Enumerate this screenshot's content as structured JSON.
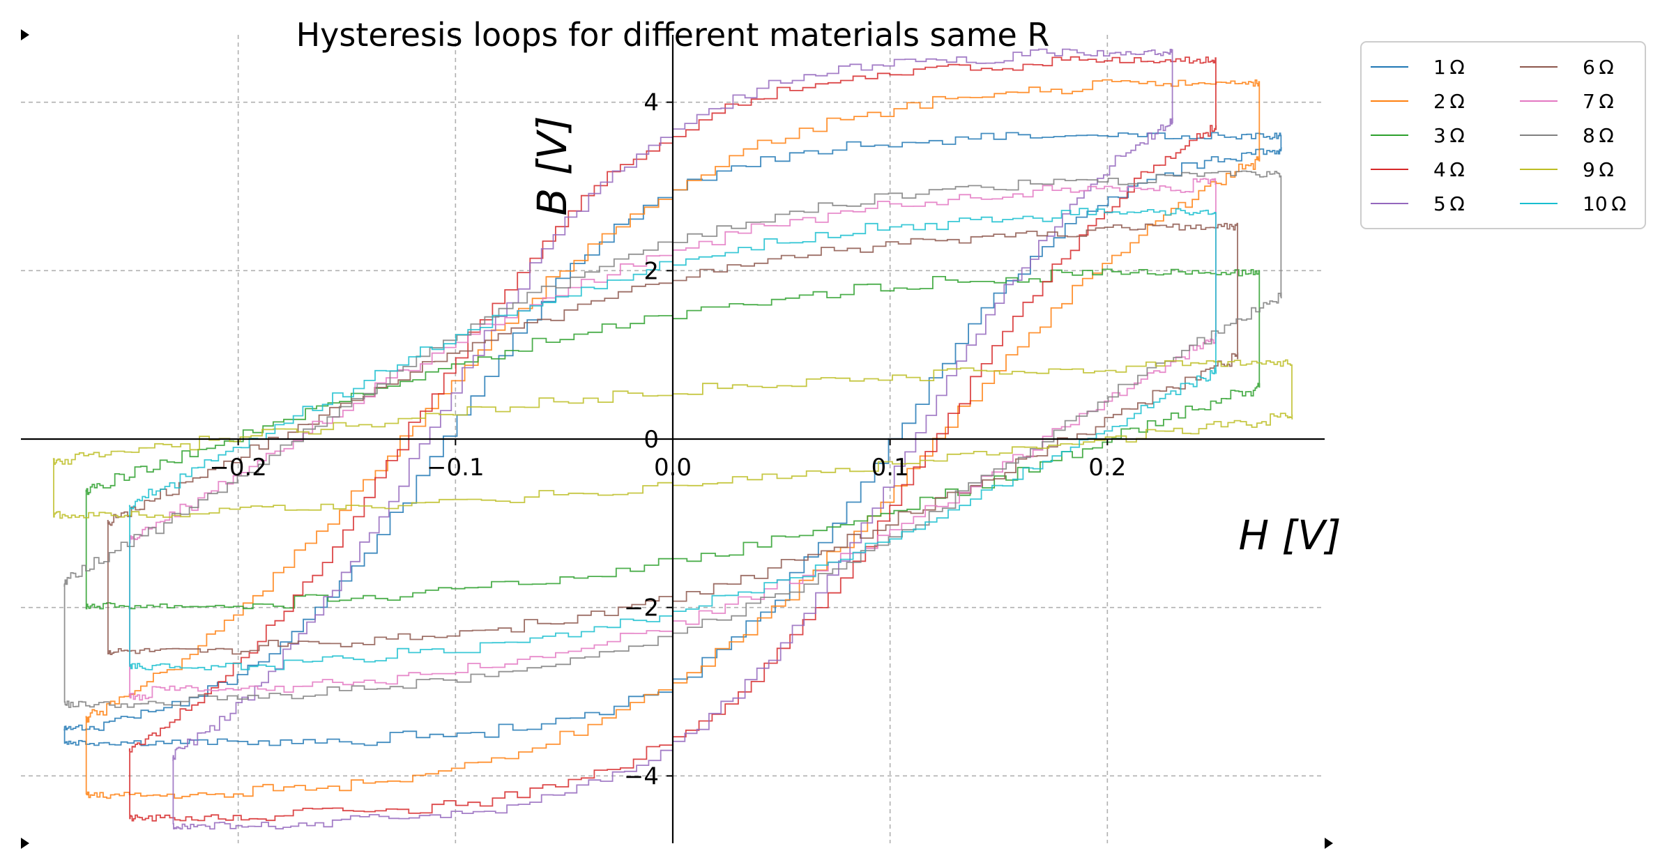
{
  "chart_data": {
    "type": "line",
    "title": "Hysteresis loops for different materials same R",
    "xlabel": "H [V]",
    "ylabel": "B [V]",
    "xlim": [
      -0.3,
      0.3
    ],
    "ylim": [
      -4.8,
      4.8
    ],
    "x_ticks": [
      -0.2,
      -0.1,
      0.0,
      0.1,
      0.2
    ],
    "x_tick_labels": [
      "−0.2",
      "−0.1",
      "0.0",
      "0.1",
      "0.2"
    ],
    "y_ticks": [
      -4,
      -2,
      0,
      2,
      4
    ],
    "y_tick_labels": [
      "−4",
      "−2",
      "0",
      "2",
      "4"
    ],
    "grid": true,
    "spines": "centered",
    "legend": {
      "placement": "outside-top-right",
      "columns": 2
    },
    "series": [
      {
        "name": "1 Ω",
        "color": "#1f77b4",
        "Hmax": 0.28,
        "Bmax": 3.6,
        "Hc": 0.1,
        "Br": 2.85
      },
      {
        "name": "2 Ω",
        "color": "#ff7f0e",
        "Hmax": 0.27,
        "Bmax": 4.3,
        "Hc": 0.12,
        "Br": 2.9
      },
      {
        "name": "3 Ω",
        "color": "#2ca02c",
        "Hmax": 0.27,
        "Bmax": 2.1,
        "Hc": 0.2,
        "Br": 1.45
      },
      {
        "name": "4 Ω",
        "color": "#d62728",
        "Hmax": 0.25,
        "Bmax": 4.5,
        "Hc": 0.12,
        "Br": 3.55
      },
      {
        "name": "5 Ω",
        "color": "#9467bd",
        "Hmax": 0.23,
        "Bmax": 4.6,
        "Hc": 0.11,
        "Br": 3.6
      },
      {
        "name": "6 Ω",
        "color": "#8c564b",
        "Hmax": 0.26,
        "Bmax": 2.6,
        "Hc": 0.18,
        "Br": 1.85
      },
      {
        "name": "7 Ω",
        "color": "#e377c2",
        "Hmax": 0.25,
        "Bmax": 3.1,
        "Hc": 0.17,
        "Br": 2.2
      },
      {
        "name": "8 Ω",
        "color": "#7f7f7f",
        "Hmax": 0.28,
        "Bmax": 3.2,
        "Hc": 0.17,
        "Br": 2.3
      },
      {
        "name": "9 Ω",
        "color": "#bcbd22",
        "Hmax": 0.285,
        "Bmax": 1.0,
        "Hc": 0.2,
        "Br": 0.55
      },
      {
        "name": "10 Ω",
        "color": "#17becf",
        "Hmax": 0.25,
        "Bmax": 2.8,
        "Hc": 0.19,
        "Br": 2.05
      }
    ]
  }
}
